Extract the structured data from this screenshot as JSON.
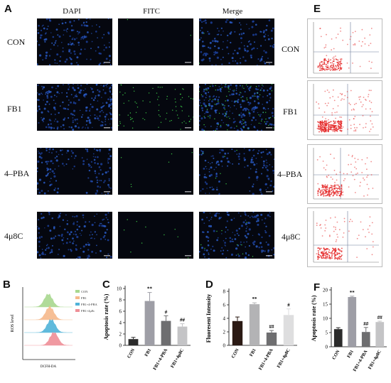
{
  "panels": {
    "A": "A",
    "B": "B",
    "C": "C",
    "D": "D",
    "E": "E",
    "F": "F"
  },
  "micro": {
    "columns": [
      "DAPI",
      "FITC",
      "Merge"
    ],
    "rows": [
      "CON",
      "FB1",
      "4–PBA",
      "4μ8C"
    ]
  },
  "flow_rows": [
    "CON",
    "FB1",
    "4–PBA",
    "4μ8C"
  ],
  "ros": {
    "ylabel": "ROS level",
    "xlabel": "DCFH-DA",
    "legend": [
      "CON",
      "FB1",
      "FB1+4-PBA",
      "FB1+4μ8c"
    ],
    "colors": [
      "#a8d88e",
      "#f6b98b",
      "#4fb3d9",
      "#ef8f97"
    ]
  },
  "chart_data": [
    {
      "id": "C",
      "type": "bar",
      "ylabel": "Apoptosis rate (%)",
      "categories": [
        "CON",
        "FB1",
        "FB1+4-PBA",
        "FB1+4μ8C"
      ],
      "values": [
        1.1,
        7.8,
        4.3,
        3.3
      ],
      "errors": [
        0.3,
        1.5,
        0.9,
        0.5
      ],
      "annotations": [
        "",
        "**",
        "#",
        "##"
      ],
      "ylim": [
        0,
        10
      ],
      "yticks": [
        0,
        2,
        4,
        6,
        8,
        10
      ],
      "colors": [
        "#2b2b2b",
        "#9e9ea6",
        "#6e6e70",
        "#c4c4c6"
      ]
    },
    {
      "id": "D",
      "type": "bar",
      "ylabel": "Fluoresent Intensity",
      "categories": [
        "CON",
        "FB1",
        "FB1+4-PBA",
        "FB1+4μ8C"
      ],
      "values": [
        3.6,
        6.1,
        1.9,
        4.5
      ],
      "errors": [
        0.6,
        0.2,
        0.3,
        0.9
      ],
      "annotations": [
        "",
        "**",
        "##",
        "#"
      ],
      "ylim": [
        0,
        8
      ],
      "yticks": [
        0,
        2,
        4,
        6,
        8
      ],
      "colors": [
        "#2b1a14",
        "#b3b3b5",
        "#6e6e70",
        "#dededf"
      ]
    },
    {
      "id": "F",
      "type": "bar",
      "ylabel": "Apoptosis rate (%)",
      "categories": [
        "CON",
        "FB1",
        "FB1+4-PBA",
        "FB1+4μ8C"
      ],
      "values": [
        6.2,
        17.5,
        5.2,
        8.7
      ],
      "errors": [
        0.5,
        0.3,
        1.6,
        0.3
      ],
      "annotations": [
        "",
        "**",
        "##",
        "##"
      ],
      "ylim": [
        0,
        20
      ],
      "yticks": [
        0,
        5,
        10,
        15,
        20
      ],
      "colors": [
        "#2b2b2b",
        "#9e9ea6",
        "#6e6e70",
        "#c4c4c6"
      ]
    }
  ]
}
